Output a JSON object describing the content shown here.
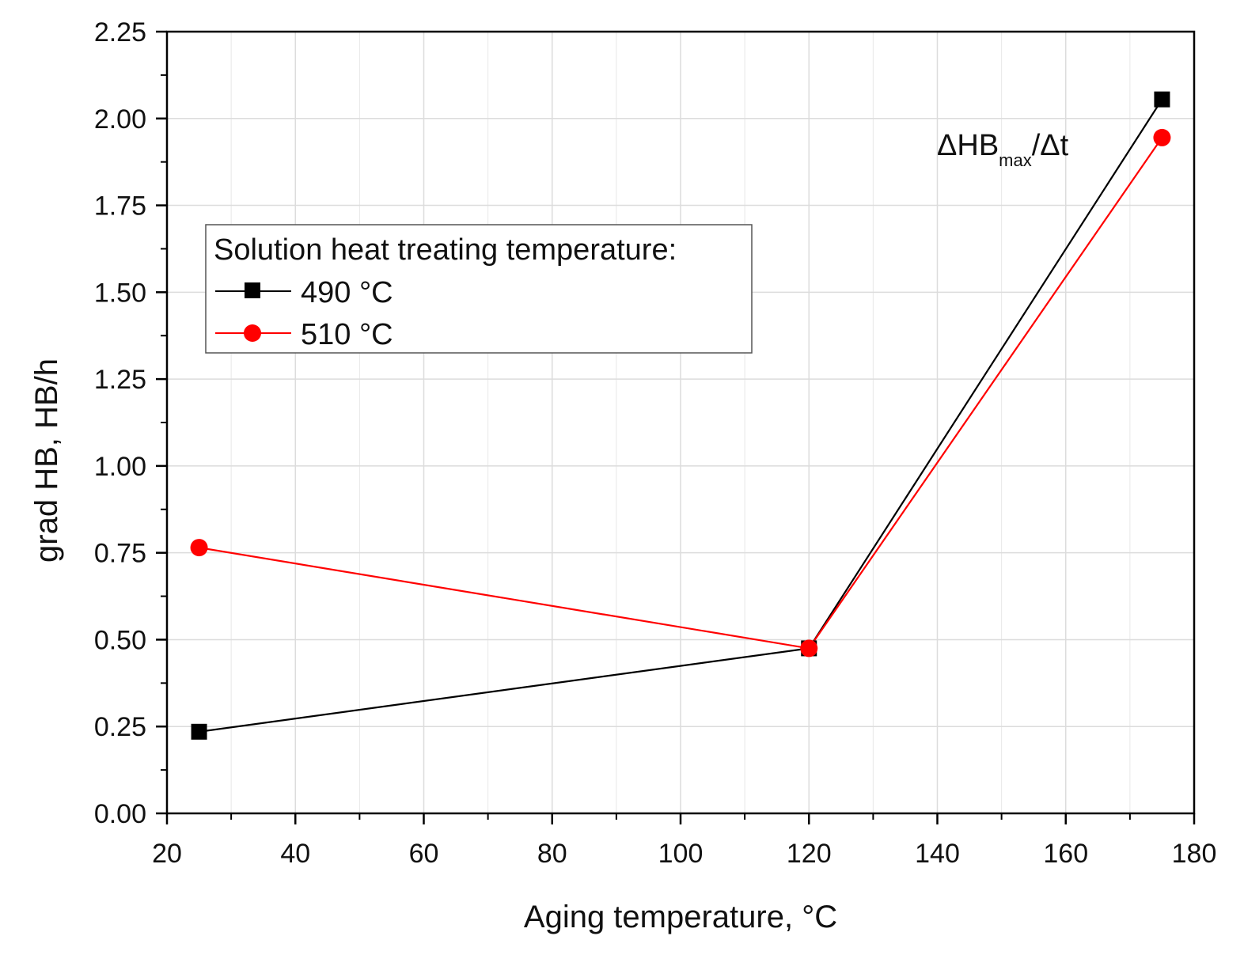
{
  "chart_data": {
    "type": "line",
    "title": "",
    "xlabel": "Aging temperature, °C",
    "ylabel": "grad HB, HB/h",
    "xlim": [
      20,
      180
    ],
    "ylim": [
      0,
      2.25
    ],
    "xticks": [
      20,
      40,
      60,
      80,
      100,
      120,
      140,
      160,
      180
    ],
    "xtick_labels": [
      "20",
      "40",
      "60",
      "80",
      "100",
      "120",
      "140",
      "160",
      "180"
    ],
    "yticks": [
      0,
      0.25,
      0.5,
      0.75,
      1.0,
      1.25,
      1.5,
      1.75,
      2.0,
      2.25
    ],
    "ytick_labels": [
      "0.00",
      "0.25",
      "0.50",
      "0.75",
      "1.00",
      "1.25",
      "1.50",
      "1.75",
      "2.00",
      "2.25"
    ],
    "grid": true,
    "legend": {
      "title": "Solution heat treating temperature:",
      "placement": "upper-left"
    },
    "series": [
      {
        "name": "490 °C",
        "color": "#000000",
        "marker": "square",
        "x": [
          25,
          120,
          175
        ],
        "y": [
          0.235,
          0.475,
          2.055
        ]
      },
      {
        "name": "510 °C",
        "color": "#ff0000",
        "marker": "circle",
        "x": [
          25,
          120,
          175
        ],
        "y": [
          0.765,
          0.475,
          1.945
        ]
      }
    ],
    "annotation": {
      "prefix": "ΔHB",
      "subscript": "max",
      "suffix": "/Δt"
    }
  }
}
